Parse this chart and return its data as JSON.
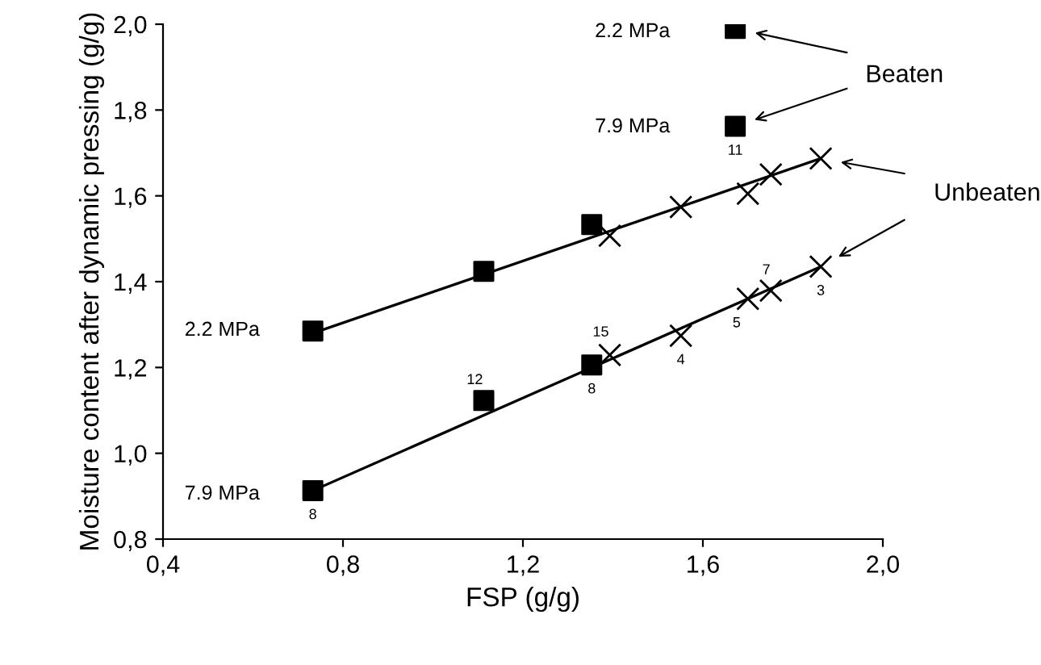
{
  "chart_data": {
    "type": "scatter",
    "xlabel": "FSP (g/g)",
    "ylabel": "Moisture content after dynamic pressing (g/g)",
    "xlim": [
      0.4,
      2.0
    ],
    "ylim": [
      0.8,
      2.0
    ],
    "xticks": [
      {
        "value": 0.4,
        "label": "0,4"
      },
      {
        "value": 0.8,
        "label": "0,8"
      },
      {
        "value": 1.2,
        "label": "1,2"
      },
      {
        "value": 1.6,
        "label": "1,6"
      },
      {
        "value": 2.0,
        "label": "2,0"
      }
    ],
    "yticks": [
      {
        "value": 0.8,
        "label": "0,8"
      },
      {
        "value": 1.0,
        "label": "1,0"
      },
      {
        "value": 1.2,
        "label": "1,2"
      },
      {
        "value": 1.4,
        "label": "1,4"
      },
      {
        "value": 1.6,
        "label": "1,6"
      },
      {
        "value": 1.8,
        "label": "1,8"
      },
      {
        "value": 2.0,
        "label": "2,0"
      }
    ],
    "grid": false,
    "legend": false,
    "series": [
      {
        "type": "line",
        "color": "#000000",
        "marker": "none",
        "line_style": "solid",
        "x": [
          0.733,
          1.862
        ],
        "values": [
          1.28,
          1.687
        ]
      },
      {
        "type": "line",
        "color": "#000000",
        "marker": "none",
        "line_style": "solid",
        "x": [
          0.733,
          1.862
        ],
        "values": [
          0.913,
          1.435
        ]
      },
      {
        "color": "#000000",
        "marker": "square",
        "x": [
          0.733,
          1.113,
          1.353,
          1.672,
          1.672,
          0.733,
          1.113,
          1.353
        ],
        "values": [
          1.285,
          1.424,
          1.533,
          1.99,
          1.762,
          0.913,
          1.123,
          1.206
        ]
      },
      {
        "color": "#000000",
        "marker": "cross",
        "x": [
          1.393,
          1.551,
          1.7,
          1.751,
          1.862,
          1.393,
          1.551,
          1.7,
          1.751,
          1.862
        ],
        "values": [
          1.507,
          1.574,
          1.605,
          1.65,
          1.687,
          1.229,
          1.274,
          1.36,
          1.379,
          1.435
        ]
      }
    ],
    "annotations": [
      "2.2 MPa",
      "7.9 MPa",
      "2.2 MPa",
      "7.9 MPa",
      "Beaten",
      "Unbeaten",
      {
        "text": "11",
        "x": 1.672,
        "y": 1.762
      },
      {
        "text": "12",
        "x": 1.113,
        "y": 1.123
      },
      {
        "text": "8",
        "x": 0.733,
        "y": 0.913
      },
      {
        "text": "8",
        "x": 1.353,
        "y": 1.206
      },
      {
        "text": "15",
        "x": 1.393,
        "y": 1.229
      },
      {
        "text": "4",
        "x": 1.551,
        "y": 1.274
      },
      {
        "text": "5",
        "x": 1.7,
        "y": 1.36
      },
      {
        "text": "7",
        "x": 1.751,
        "y": 1.379
      },
      {
        "text": "3",
        "x": 1.862,
        "y": 1.435
      }
    ]
  }
}
